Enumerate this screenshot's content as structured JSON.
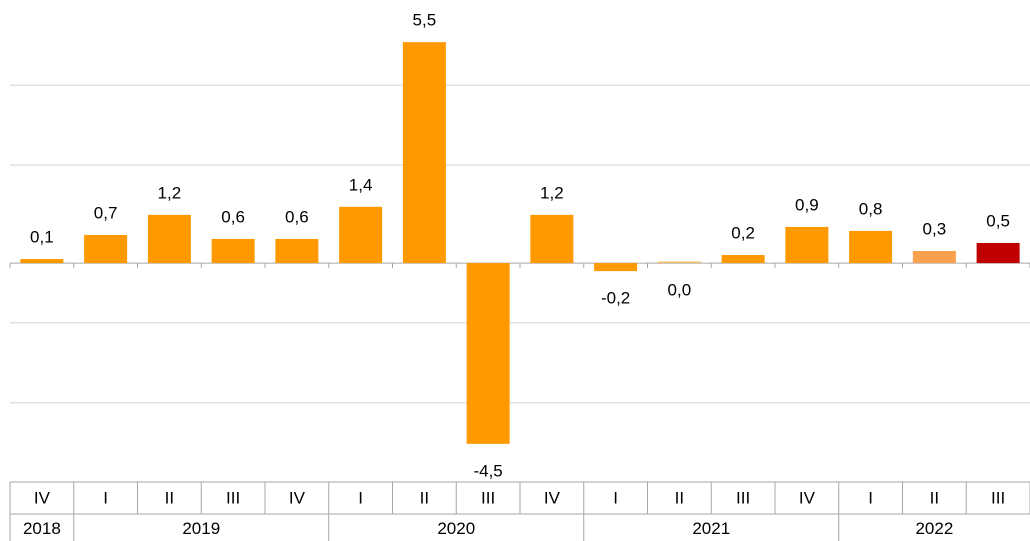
{
  "chart_data": {
    "type": "bar",
    "categories": [
      {
        "quarter": "IV",
        "year": "2018"
      },
      {
        "quarter": "I",
        "year": "2019"
      },
      {
        "quarter": "II",
        "year": "2019"
      },
      {
        "quarter": "III",
        "year": "2019"
      },
      {
        "quarter": "IV",
        "year": "2019"
      },
      {
        "quarter": "I",
        "year": "2020"
      },
      {
        "quarter": "II",
        "year": "2020"
      },
      {
        "quarter": "III",
        "year": "2020"
      },
      {
        "quarter": "IV",
        "year": "2020"
      },
      {
        "quarter": "I",
        "year": "2021"
      },
      {
        "quarter": "II",
        "year": "2021"
      },
      {
        "quarter": "III",
        "year": "2021"
      },
      {
        "quarter": "IV",
        "year": "2021"
      },
      {
        "quarter": "I",
        "year": "2022"
      },
      {
        "quarter": "II",
        "year": "2022"
      },
      {
        "quarter": "III",
        "year": "2022"
      }
    ],
    "values": [
      0.1,
      0.7,
      1.2,
      0.6,
      0.6,
      1.4,
      5.5,
      -4.5,
      1.2,
      -0.2,
      0.0,
      0.2,
      0.9,
      0.8,
      0.3,
      0.5
    ],
    "value_labels": [
      "0,1",
      "0,7",
      "1,2",
      "0,6",
      "0,6",
      "1,4",
      "5,5",
      "-4,5",
      "1,2",
      "-0,2",
      "0,0",
      "0,2",
      "0,9",
      "0,8",
      "0,3",
      "0,5"
    ],
    "colors": [
      "#ff9900",
      "#ff9900",
      "#ff9900",
      "#ff9900",
      "#ff9900",
      "#ff9900",
      "#ff9900",
      "#ff9900",
      "#ff9900",
      "#ff9900",
      "#f5b96a",
      "#ff9900",
      "#ff9900",
      "#ff9900",
      "#fba14d",
      "#c00000"
    ],
    "ylim": [
      -5.4,
      6.3
    ],
    "gridlines": [
      4.43,
      2.44,
      -1.49,
      -3.48
    ],
    "grid": true
  }
}
